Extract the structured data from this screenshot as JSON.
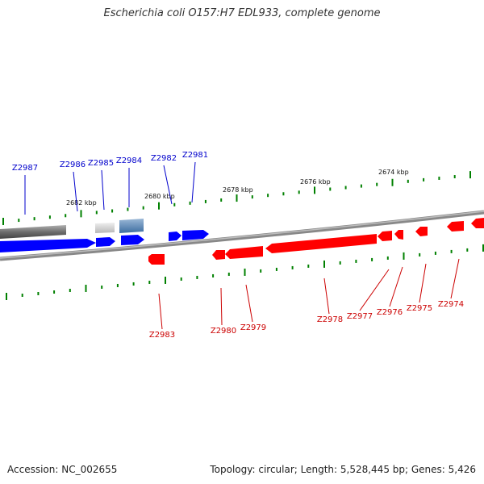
{
  "title": "Escherichia coli O157:H7 EDL933, complete genome",
  "accession": "Accession: NC_002655",
  "topology": "Topology: circular; Length: 5,528,445 bp; Genes: 5,426",
  "colors": {
    "forward_gene": "#0000ff",
    "reverse_gene": "#ff0000",
    "tick": "#008000",
    "backbone": "#888888",
    "forward_label": "#0000cc",
    "reverse_label": "#cc0000"
  },
  "kbp_labels": [
    "2682 kbp",
    "2680 kbp",
    "2678 kbp",
    "2676 kbp",
    "2674 kbp"
  ],
  "forward_genes": [
    "Z2987",
    "Z2986",
    "Z2985",
    "Z2984",
    "Z2982",
    "Z2981"
  ],
  "reverse_genes": [
    "Z2983",
    "Z2980",
    "Z2979",
    "Z2978",
    "Z2977",
    "Z2976",
    "Z2975",
    "Z2974"
  ]
}
